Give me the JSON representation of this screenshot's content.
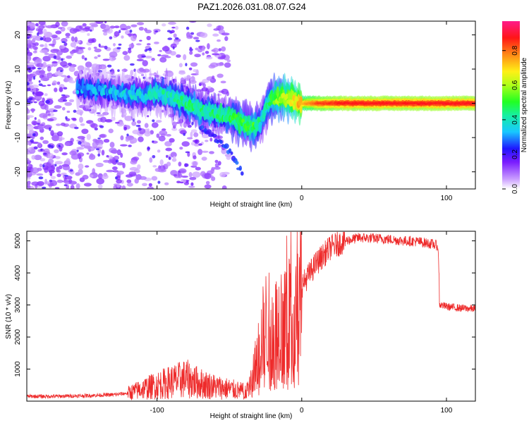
{
  "title": "PAZ1.2026.031.08.07.G24",
  "colors": {
    "snr_line": "#ee2a2a",
    "track_core": "#e8164a",
    "axis": "#000000"
  },
  "colorbar": {
    "label": "Normalized spectral amplitude",
    "ticks": [
      "0.0",
      "0.2",
      "0.4",
      "0.6",
      "0.8"
    ],
    "tick_values": [
      0.0,
      0.2,
      0.4,
      0.6,
      0.8
    ],
    "range": [
      0,
      0.97
    ]
  },
  "chart_data": [
    {
      "type": "heatmap",
      "name": "spectrogram",
      "xlabel": "Height of straight line (km)",
      "ylabel": "Frequency (Hz)",
      "xlim": [
        -190,
        120
      ],
      "ylim": [
        -25,
        24
      ],
      "xticks": [
        -100,
        0,
        100
      ],
      "xtick_labels": [
        "-100",
        "0",
        "100"
      ],
      "yticks": [
        -20,
        -10,
        0,
        10,
        20
      ],
      "ytick_labels": [
        "-20",
        "-10",
        "0",
        "10",
        "20"
      ],
      "track": [
        {
          "x": -155,
          "f": 4,
          "amp": 0.3
        },
        {
          "x": -140,
          "f": 4,
          "amp": 0.32
        },
        {
          "x": -125,
          "f": 3,
          "amp": 0.35
        },
        {
          "x": -110,
          "f": 2,
          "amp": 0.38
        },
        {
          "x": -100,
          "f": 3,
          "amp": 0.4
        },
        {
          "x": -90,
          "f": 2,
          "amp": 0.42
        },
        {
          "x": -80,
          "f": 0,
          "amp": 0.45
        },
        {
          "x": -70,
          "f": -2,
          "amp": 0.45
        },
        {
          "x": -60,
          "f": -3,
          "amp": 0.45
        },
        {
          "x": -50,
          "f": -4,
          "amp": 0.48
        },
        {
          "x": -40,
          "f": -6,
          "amp": 0.5
        },
        {
          "x": -33,
          "f": -7,
          "amp": 0.5
        },
        {
          "x": -28,
          "f": -5,
          "amp": 0.4
        },
        {
          "x": -25,
          "f": -2,
          "amp": 0.45
        },
        {
          "x": -22,
          "f": 1,
          "amp": 0.5
        },
        {
          "x": -15,
          "f": 1.5,
          "amp": 0.6
        },
        {
          "x": -5,
          "f": 1,
          "amp": 0.7
        },
        {
          "x": 0,
          "f": 0,
          "amp": 0.75
        },
        {
          "x": 10,
          "f": 0,
          "amp": 0.85
        },
        {
          "x": 30,
          "f": 0,
          "amp": 0.9
        },
        {
          "x": 50,
          "f": 0,
          "amp": 0.9
        },
        {
          "x": 70,
          "f": 0,
          "amp": 0.9
        },
        {
          "x": 90,
          "f": 0,
          "amp": 0.9
        },
        {
          "x": 110,
          "f": 0,
          "amp": 0.9
        },
        {
          "x": 120,
          "f": 0,
          "amp": 0.9
        }
      ],
      "secondary_track": [
        {
          "x": -70,
          "f": -7,
          "amp": 0.3
        },
        {
          "x": -60,
          "f": -10,
          "amp": 0.3
        },
        {
          "x": -50,
          "f": -14,
          "amp": 0.32
        },
        {
          "x": -45,
          "f": -18,
          "amp": 0.32
        },
        {
          "x": -40,
          "f": -21,
          "amp": 0.3
        }
      ]
    },
    {
      "type": "line",
      "name": "snr",
      "xlabel": "Height of straight line (km)",
      "ylabel": "SNR (10 * v/v)",
      "xlim": [
        -190,
        120
      ],
      "ylim": [
        0,
        5300
      ],
      "xticks": [
        -100,
        0,
        100
      ],
      "xtick_labels": [
        "-100",
        "0",
        "100"
      ],
      "yticks": [
        1000,
        2000,
        3000,
        4000,
        5000
      ],
      "ytick_labels": [
        "1000",
        "2000",
        "3000",
        "4000",
        "5000"
      ],
      "series": [
        {
          "name": "SNR",
          "x": [
            -190,
            -170,
            -150,
            -130,
            -120,
            -110,
            -100,
            -90,
            -80,
            -70,
            -60,
            -50,
            -40,
            -35,
            -30,
            -25,
            -20,
            -15,
            -10,
            -5,
            0,
            10,
            20,
            30,
            40,
            50,
            60,
            70,
            80,
            90,
            94,
            96,
            100,
            110,
            120
          ],
          "y": [
            150,
            150,
            170,
            200,
            250,
            380,
            500,
            600,
            700,
            550,
            450,
            380,
            300,
            600,
            1500,
            2400,
            2200,
            2500,
            3000,
            3400,
            3600,
            4300,
            4800,
            5000,
            5100,
            5080,
            5050,
            5000,
            4980,
            4900,
            4850,
            3000,
            2950,
            2900,
            2880
          ]
        }
      ]
    }
  ]
}
